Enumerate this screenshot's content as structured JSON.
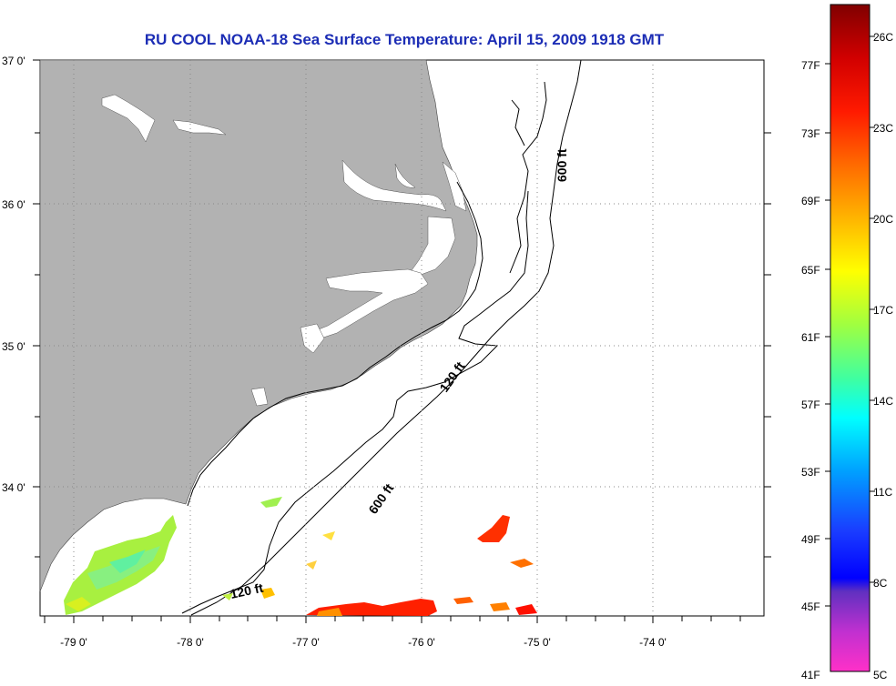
{
  "map": {
    "title": "RU COOL  NOAA-18  Sea Surface Temperature:  April 15, 2009 1918 GMT",
    "lon_labels": [
      "-79 0'",
      "-78 0'",
      "-77 0'",
      "-76 0'",
      "-75 0'",
      "-74 0'"
    ],
    "lat_labels": [
      "37 0'",
      "36 0'",
      "35 0'",
      "34 0'"
    ],
    "depth_labels": {
      "d600_north": "600 ft",
      "d120_mid": "120 ft",
      "d600_south": "600 ft",
      "d120_south": "120 ft"
    },
    "colors": {
      "land": "#b2b2b2",
      "grid": "#888888",
      "title": "#1c2db5"
    }
  },
  "colorbar": {
    "fahrenheit_labels": [
      "77F",
      "73F",
      "69F",
      "65F",
      "61F",
      "57F",
      "53F",
      "49F",
      "45F",
      "41F"
    ],
    "celsius_labels": [
      "26C",
      "23C",
      "20C",
      "17C",
      "14C",
      "11C",
      "8C",
      "5C"
    ]
  }
}
